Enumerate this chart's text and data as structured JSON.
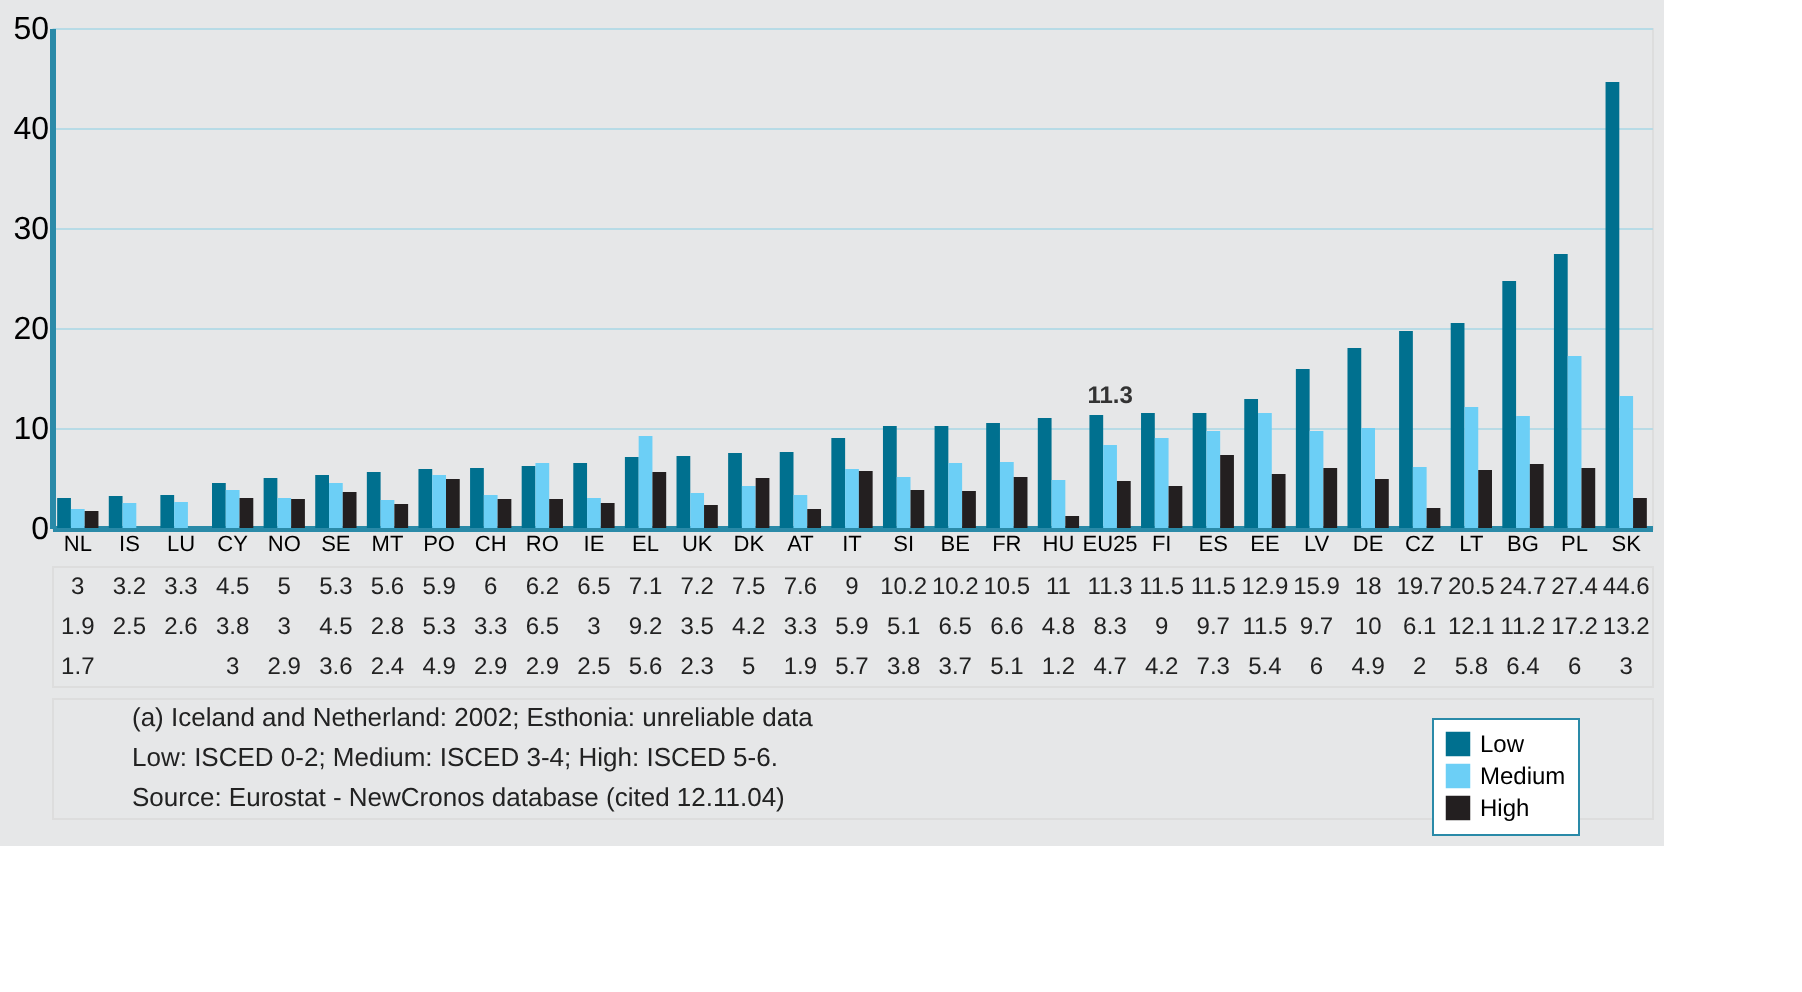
{
  "chart_data": {
    "type": "bar",
    "categories": [
      "NL",
      "IS",
      "LU",
      "CY",
      "NO",
      "SE",
      "MT",
      "PO",
      "CH",
      "RO",
      "IE",
      "EL",
      "UK",
      "DK",
      "AT",
      "IT",
      "SI",
      "BE",
      "FR",
      "HU",
      "EU25",
      "FI",
      "ES",
      "EE",
      "LV",
      "DE",
      "CZ",
      "LT",
      "BG",
      "PL",
      "SK"
    ],
    "series": [
      {
        "name": "Low",
        "color": "#00708f",
        "values": [
          3,
          3.2,
          3.3,
          4.5,
          5,
          5.3,
          5.6,
          5.9,
          6,
          6.2,
          6.5,
          7.1,
          7.2,
          7.5,
          7.6,
          9,
          10.2,
          10.2,
          10.5,
          11,
          11.3,
          11.5,
          11.5,
          12.9,
          15.9,
          18,
          19.7,
          20.5,
          24.7,
          27.4,
          44.6
        ]
      },
      {
        "name": "Medium",
        "color": "#6ccff6",
        "values": [
          1.9,
          2.5,
          2.6,
          3.8,
          3,
          4.5,
          2.8,
          5.3,
          3.3,
          6.5,
          3,
          9.2,
          3.5,
          4.2,
          3.3,
          5.9,
          5.1,
          6.5,
          6.6,
          4.8,
          8.3,
          9,
          9.7,
          11.5,
          9.7,
          10,
          6.1,
          12.1,
          11.2,
          17.2,
          13.2
        ]
      },
      {
        "name": "High",
        "color": "#231f20",
        "values": [
          1.7,
          null,
          null,
          3,
          2.9,
          3.6,
          2.4,
          4.9,
          2.9,
          2.9,
          2.5,
          5.6,
          2.3,
          5,
          1.9,
          5.7,
          3.8,
          3.7,
          5.1,
          1.2,
          4.7,
          4.2,
          7.3,
          5.4,
          6,
          4.9,
          2,
          5.8,
          6.4,
          6,
          3
        ]
      }
    ],
    "ylim": [
      0,
      50
    ],
    "yticks": [
      0,
      10,
      20,
      30,
      40,
      50
    ],
    "grid": "y",
    "legend": "bottom right",
    "data_labels": true,
    "annotations": [
      {
        "text": "11.3",
        "x": "EU25",
        "y": 11.3
      },
      "(a)  Iceland and Netherland: 2002; Esthonia: unreliable data",
      "Low: ISCED 0-2; Medium: ISCED 3-4; High: ISCED 5-6.",
      "Source: Eurostat - NewCronos database (cited 12.11.04)"
    ]
  }
}
